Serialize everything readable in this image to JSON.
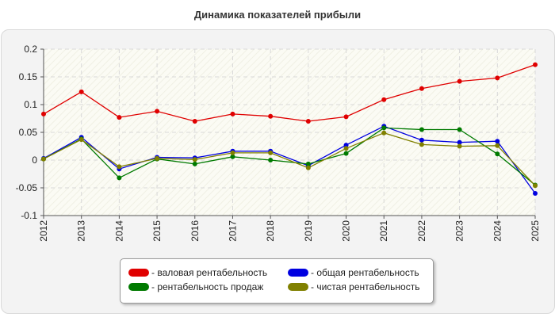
{
  "chart_data": {
    "type": "line",
    "title": "Динамика показателей прибыли",
    "x": [
      "2012",
      "2013",
      "2014",
      "2015",
      "2016",
      "2017",
      "2018",
      "2019",
      "2020",
      "2021",
      "2022",
      "2023",
      "2024",
      "2025"
    ],
    "ylim": [
      -0.1,
      0.2
    ],
    "yticks": [
      -0.1,
      -0.05,
      0,
      0.05,
      0.1,
      0.15,
      0.2
    ],
    "ytick_labels": [
      "-0.1",
      "-0.05",
      "0",
      "0.05",
      "0.1",
      "0.15",
      "0.2"
    ],
    "grid": true,
    "legend_position": "bottom",
    "series": [
      {
        "name": "- валовая рентабельность",
        "color": "#e00000",
        "values": [
          0.083,
          0.123,
          0.077,
          0.088,
          0.07,
          0.083,
          0.079,
          0.07,
          0.078,
          0.109,
          0.129,
          0.142,
          0.148,
          0.172
        ]
      },
      {
        "name": "- общая рентабельность",
        "color": "#0000e0",
        "values": [
          0.003,
          0.041,
          -0.016,
          0.005,
          0.004,
          0.016,
          0.016,
          -0.01,
          0.027,
          0.061,
          0.036,
          0.032,
          0.034,
          -0.06
        ]
      },
      {
        "name": "- рентабельность продаж",
        "color": "#007a00",
        "values": [
          0.002,
          0.038,
          -0.032,
          0.002,
          -0.007,
          0.006,
          0.0,
          -0.007,
          0.012,
          0.058,
          0.055,
          0.055,
          0.011,
          -0.045
        ]
      },
      {
        "name": "- чистая рентабельность",
        "color": "#808000",
        "values": [
          0.002,
          0.037,
          -0.012,
          0.003,
          0.001,
          0.013,
          0.013,
          -0.014,
          0.021,
          0.049,
          0.028,
          0.025,
          0.026,
          -0.046
        ]
      }
    ]
  }
}
